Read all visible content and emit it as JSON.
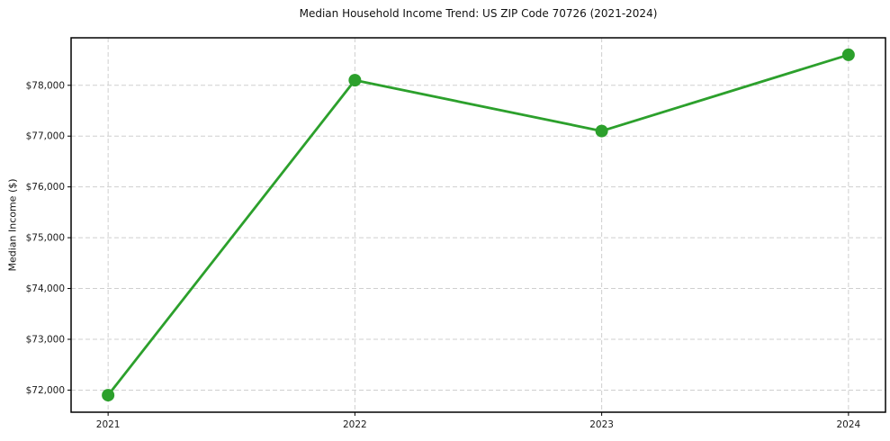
{
  "chart_data": {
    "type": "line",
    "title": "Median Household Income Trend: US ZIP Code 70726 (2021-2024)",
    "xlabel": "",
    "ylabel": "Median Income ($)",
    "categories": [
      "2021",
      "2022",
      "2023",
      "2024"
    ],
    "x": [
      2021,
      2022,
      2023,
      2024
    ],
    "values": [
      71900,
      78100,
      77100,
      78600
    ],
    "yticks": [
      {
        "value": 72000,
        "label": "$72,000"
      },
      {
        "value": 73000,
        "label": "$73,000"
      },
      {
        "value": 74000,
        "label": "$74,000"
      },
      {
        "value": 75000,
        "label": "$75,000"
      },
      {
        "value": 76000,
        "label": "$76,000"
      },
      {
        "value": 77000,
        "label": "$77,000"
      },
      {
        "value": 78000,
        "label": "$78,000"
      }
    ],
    "xlim": [
      2020.85,
      2024.15
    ],
    "ylim": [
      71565,
      78935
    ],
    "grid": true,
    "grid_line_style": "dashed",
    "legend": "none",
    "colors": {
      "line": "#2ca02c",
      "marker": "#2ca02c",
      "grid": "#cfcfcf",
      "spine": "#000000",
      "tick_text": "#1a1a1a",
      "background": "#ffffff"
    }
  }
}
